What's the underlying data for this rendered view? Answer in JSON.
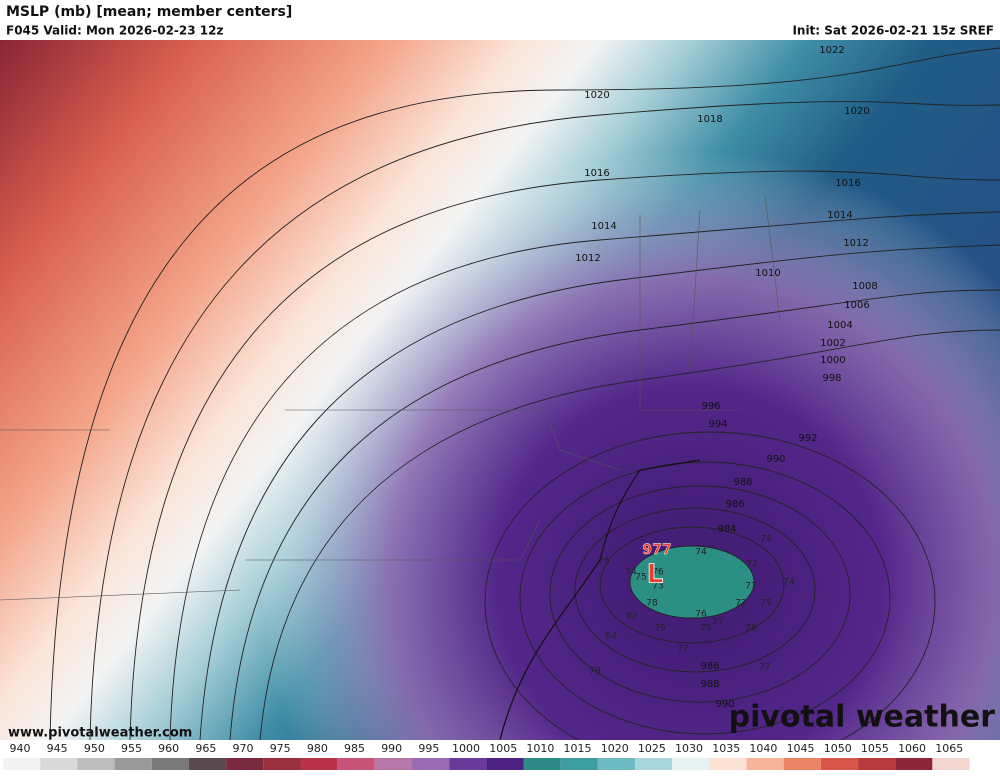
{
  "header": {
    "title": "MSLP (mb) [mean; member centers]",
    "valid": "F045 Valid: Mon 2026-02-23 12z",
    "init": "Init: Sat 2026-02-21 15z SREF"
  },
  "contour_labels": [
    1022,
    1020,
    1020,
    1018,
    1016,
    1016,
    1014,
    1014,
    1012,
    1012,
    1010,
    1008,
    1006,
    1004,
    1002,
    1000,
    998,
    996,
    994,
    992,
    990,
    988,
    986,
    984,
    986,
    988,
    990
  ],
  "low_center": {
    "label": "L",
    "pressure": 977
  },
  "member_centers": [
    74,
    74,
    76,
    74,
    75,
    76,
    72,
    74,
    73,
    77,
    78,
    72,
    75,
    82,
    76,
    77,
    75,
    79,
    78,
    84,
    77,
    77,
    79
  ],
  "colorbar_ticks": [
    940,
    945,
    950,
    955,
    960,
    965,
    970,
    975,
    980,
    985,
    990,
    995,
    1000,
    1005,
    1010,
    1015,
    1020,
    1025,
    1030,
    1035,
    1040,
    1045,
    1050,
    1055,
    1060,
    1065
  ],
  "footer": {
    "website": "www.pivotalweather.com",
    "watermark": "pivotal weather"
  }
}
